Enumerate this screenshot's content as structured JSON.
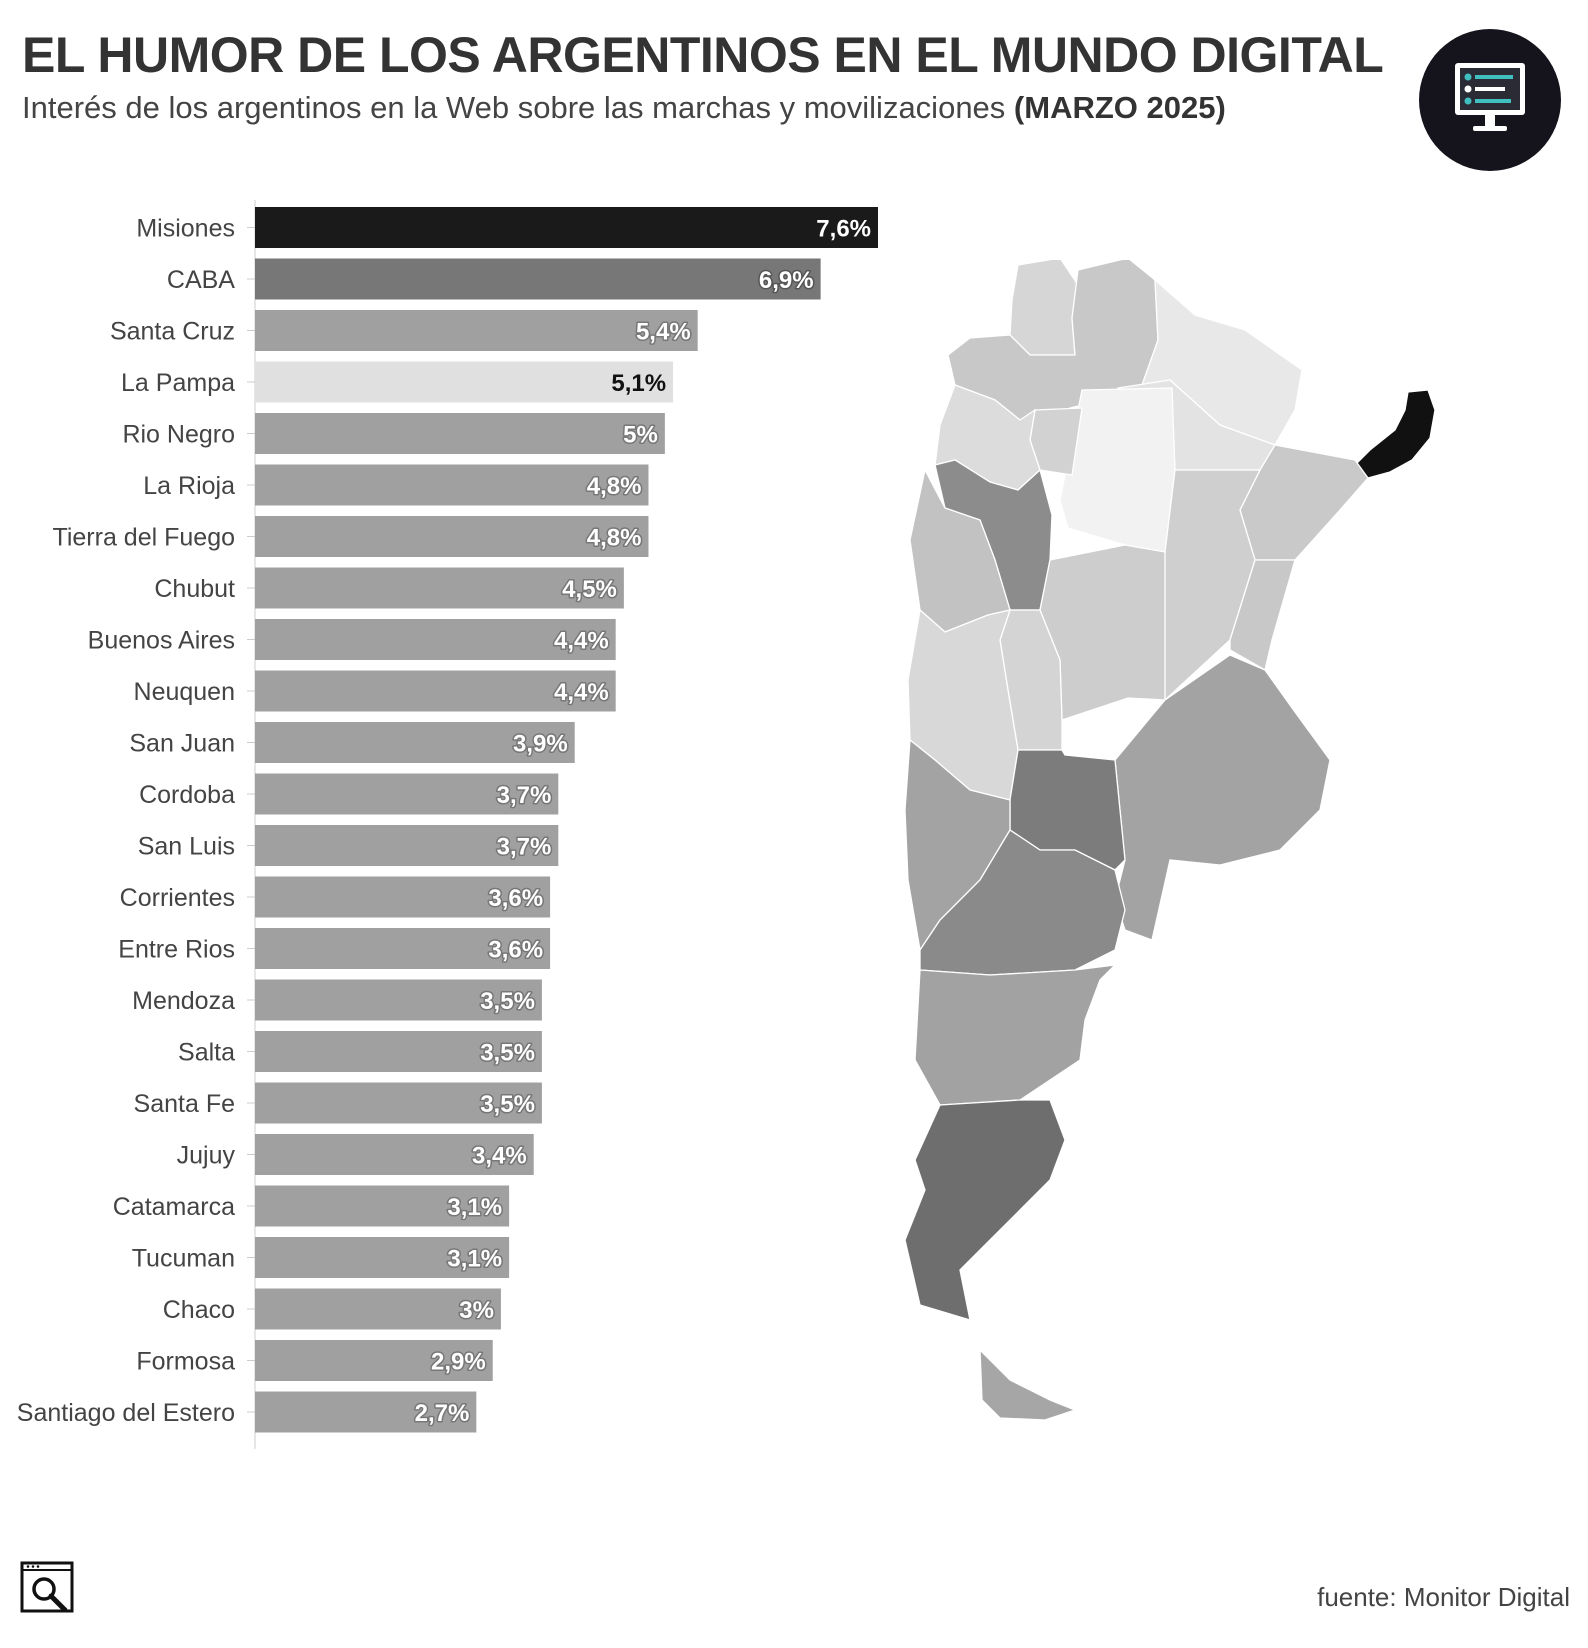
{
  "header": {
    "title": "EL HUMOR DE LOS ARGENTINOS EN EL MUNDO DIGITAL",
    "subtitle_text": "Interés de los argentinos en la Web sobre las marchas y movilizaciones",
    "subtitle_period": "(MARZO 2025)"
  },
  "logo": {
    "icon": "monitor-dashboard-icon",
    "badge_color": "#15131c",
    "accent_color": "#3fbfbf"
  },
  "chart_data": {
    "type": "bar",
    "orientation": "horizontal",
    "title": "EL HUMOR DE LOS ARGENTINOS EN EL MUNDO DIGITAL",
    "subtitle": "Interés de los argentinos en la Web sobre las marchas y movilizaciones (MARZO 2025)",
    "xlabel": "",
    "ylabel": "",
    "xlim": [
      0,
      7.6
    ],
    "grid": false,
    "unit": "%",
    "categories": [
      "Misiones",
      "CABA",
      "Santa Cruz",
      "La Pampa",
      "Rio Negro",
      "La Rioja",
      "Tierra del Fuego",
      "Chubut",
      "Buenos Aires",
      "Neuquen",
      "San Juan",
      "Cordoba",
      "San Luis",
      "Corrientes",
      "Entre Rios",
      "Mendoza",
      "Salta",
      "Santa Fe",
      "Jujuy",
      "Catamarca",
      "Tucuman",
      "Chaco",
      "Formosa",
      "Santiago del Estero"
    ],
    "values": [
      7.6,
      6.9,
      5.4,
      5.1,
      5.0,
      4.8,
      4.8,
      4.5,
      4.4,
      4.4,
      3.9,
      3.7,
      3.7,
      3.6,
      3.6,
      3.5,
      3.5,
      3.5,
      3.4,
      3.1,
      3.1,
      3.0,
      2.9,
      2.7
    ],
    "value_labels": [
      "7,6%",
      "6,9%",
      "5,4%",
      "5,1%",
      "5%",
      "4,8%",
      "4,8%",
      "4,5%",
      "4,4%",
      "4,4%",
      "3,9%",
      "3,7%",
      "3,7%",
      "3,6%",
      "3,6%",
      "3,5%",
      "3,5%",
      "3,5%",
      "3,4%",
      "3,1%",
      "3,1%",
      "3%",
      "2,9%",
      "2,7%"
    ],
    "bar_colors": [
      "#1a1a1a",
      "#777777",
      "#a0a0a0",
      "#e0e0e0",
      "#a0a0a0",
      "#a0a0a0",
      "#a0a0a0",
      "#a0a0a0",
      "#a0a0a0",
      "#a0a0a0",
      "#a0a0a0",
      "#a0a0a0",
      "#a0a0a0",
      "#a0a0a0",
      "#a0a0a0",
      "#a0a0a0",
      "#a0a0a0",
      "#a0a0a0",
      "#a0a0a0",
      "#a0a0a0",
      "#a0a0a0",
      "#a0a0a0",
      "#a0a0a0",
      "#a0a0a0"
    ],
    "label_colors": [
      "#ffffff",
      "#ffffff",
      "#ffffff",
      "#111111",
      "#ffffff",
      "#ffffff",
      "#ffffff",
      "#ffffff",
      "#ffffff",
      "#ffffff",
      "#ffffff",
      "#ffffff",
      "#ffffff",
      "#ffffff",
      "#ffffff",
      "#ffffff",
      "#ffffff",
      "#ffffff",
      "#ffffff",
      "#ffffff",
      "#ffffff",
      "#ffffff",
      "#ffffff",
      "#ffffff"
    ],
    "label_outline_colors": [
      "#1a1a1a",
      "#555555",
      "#777777",
      "#e0e0e0",
      "#777777",
      "#777777",
      "#777777",
      "#777777",
      "#777777",
      "#777777",
      "#777777",
      "#777777",
      "#777777",
      "#777777",
      "#777777",
      "#777777",
      "#777777",
      "#777777",
      "#777777",
      "#777777",
      "#777777",
      "#777777",
      "#777777",
      "#777777"
    ]
  },
  "map": {
    "description_type": "choropleth",
    "highlight": "Misiones",
    "scale_dark": "#111111",
    "scale_light": "#f2f2f2"
  },
  "footer": {
    "icon": "magnifier-window-icon",
    "source": "fuente: Monitor Digital"
  }
}
